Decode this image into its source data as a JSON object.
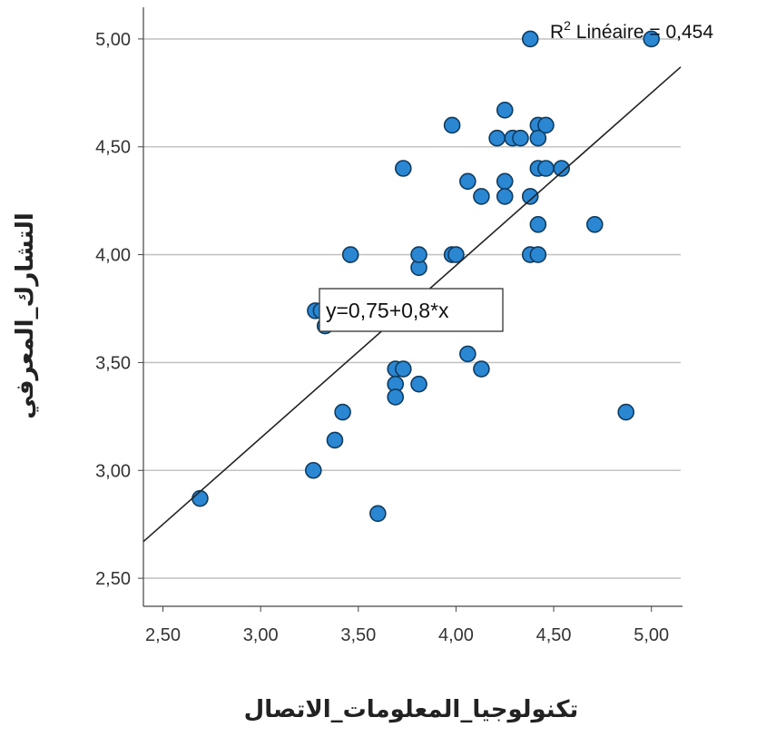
{
  "chart_data": {
    "type": "scatter",
    "xlabel": "تكنولوجيا_المعلومات_الاتصال",
    "ylabel": "التشارك_المعرفي",
    "xlim": [
      2.4,
      5.15
    ],
    "ylim": [
      2.37,
      5.13
    ],
    "x_ticks": [
      "2,50",
      "3,00",
      "3,50",
      "4,00",
      "4,50",
      "5,00"
    ],
    "x_tick_values": [
      2.5,
      3.0,
      3.5,
      4.0,
      4.5,
      5.0
    ],
    "y_ticks": [
      "2,50",
      "3,00",
      "3,50",
      "4,00",
      "4,50",
      "5,00"
    ],
    "y_tick_values": [
      2.5,
      3.0,
      3.5,
      4.0,
      4.5,
      5.0
    ],
    "grid": "horizontal",
    "marker_color": "#2b87d1",
    "marker_edge": "#0d3c63",
    "line_color": "#222222",
    "fit": {
      "intercept": 0.75,
      "slope": 0.8,
      "equation_label": "y=0,75+0,8*x",
      "r2_prefix": "R",
      "r2_sup": "2",
      "r2_text": " Linéaire = 0,454"
    },
    "points": [
      {
        "x": 2.69,
        "y": 2.87
      },
      {
        "x": 3.27,
        "y": 3.0
      },
      {
        "x": 3.38,
        "y": 3.14
      },
      {
        "x": 3.42,
        "y": 3.27
      },
      {
        "x": 3.28,
        "y": 3.74
      },
      {
        "x": 3.31,
        "y": 3.74
      },
      {
        "x": 3.33,
        "y": 3.67
      },
      {
        "x": 3.46,
        "y": 4.0
      },
      {
        "x": 3.6,
        "y": 2.8
      },
      {
        "x": 3.69,
        "y": 3.47
      },
      {
        "x": 3.69,
        "y": 3.4
      },
      {
        "x": 3.69,
        "y": 3.34
      },
      {
        "x": 3.73,
        "y": 3.47
      },
      {
        "x": 3.81,
        "y": 3.4
      },
      {
        "x": 3.81,
        "y": 3.94
      },
      {
        "x": 3.81,
        "y": 4.0
      },
      {
        "x": 3.73,
        "y": 4.4
      },
      {
        "x": 3.98,
        "y": 4.0
      },
      {
        "x": 4.0,
        "y": 4.0
      },
      {
        "x": 3.98,
        "y": 4.6
      },
      {
        "x": 4.06,
        "y": 3.54
      },
      {
        "x": 4.06,
        "y": 4.34
      },
      {
        "x": 4.13,
        "y": 3.47
      },
      {
        "x": 4.13,
        "y": 4.27
      },
      {
        "x": 4.21,
        "y": 4.54
      },
      {
        "x": 4.25,
        "y": 4.67
      },
      {
        "x": 4.25,
        "y": 4.34
      },
      {
        "x": 4.25,
        "y": 4.27
      },
      {
        "x": 4.29,
        "y": 4.54
      },
      {
        "x": 4.33,
        "y": 4.54
      },
      {
        "x": 4.38,
        "y": 5.0
      },
      {
        "x": 4.38,
        "y": 4.27
      },
      {
        "x": 4.38,
        "y": 4.0
      },
      {
        "x": 4.42,
        "y": 4.6
      },
      {
        "x": 4.42,
        "y": 4.54
      },
      {
        "x": 4.42,
        "y": 4.4
      },
      {
        "x": 4.42,
        "y": 4.14
      },
      {
        "x": 4.42,
        "y": 4.0
      },
      {
        "x": 4.46,
        "y": 4.6
      },
      {
        "x": 4.46,
        "y": 4.4
      },
      {
        "x": 4.54,
        "y": 4.4
      },
      {
        "x": 4.71,
        "y": 4.14
      },
      {
        "x": 4.87,
        "y": 3.27
      },
      {
        "x": 5.0,
        "y": 5.0
      }
    ]
  }
}
